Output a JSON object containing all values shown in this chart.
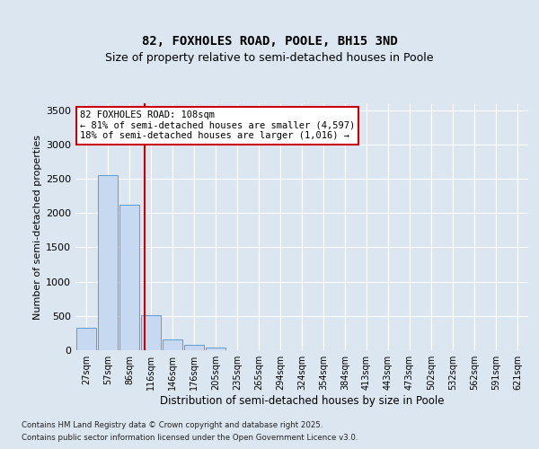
{
  "title": "82, FOXHOLES ROAD, POOLE, BH15 3ND",
  "subtitle": "Size of property relative to semi-detached houses in Poole",
  "xlabel": "Distribution of semi-detached houses by size in Poole",
  "ylabel": "Number of semi-detached properties",
  "bins": [
    "27sqm",
    "57sqm",
    "86sqm",
    "116sqm",
    "146sqm",
    "176sqm",
    "205sqm",
    "235sqm",
    "265sqm",
    "294sqm",
    "324sqm",
    "354sqm",
    "384sqm",
    "413sqm",
    "443sqm",
    "473sqm",
    "502sqm",
    "532sqm",
    "562sqm",
    "591sqm",
    "621sqm"
  ],
  "bin_edges": [
    0,
    1,
    2,
    3,
    4,
    5,
    6,
    7,
    8,
    9,
    10,
    11,
    12,
    13,
    14,
    15,
    16,
    17,
    18,
    19,
    20
  ],
  "values": [
    325,
    2550,
    2120,
    510,
    160,
    80,
    35,
    0,
    0,
    0,
    0,
    0,
    0,
    0,
    0,
    0,
    0,
    0,
    0,
    0,
    0
  ],
  "bar_color": "#c6d9f0",
  "bar_edge_color": "#5b9bd5",
  "property_line_x": 2.7,
  "annotation_line1": "82 FOXHOLES ROAD: 108sqm",
  "annotation_line2": "← 81% of semi-detached houses are smaller (4,597)",
  "annotation_line3": "18% of semi-detached houses are larger (1,016) →",
  "annotation_box_color": "#ffffff",
  "annotation_box_edge": "#cc0000",
  "vline_color": "#cc0000",
  "ylim": [
    0,
    3600
  ],
  "yticks": [
    0,
    500,
    1000,
    1500,
    2000,
    2500,
    3000,
    3500
  ],
  "bg_color": "#dce6f1",
  "plot_bg_color": "#dce6f1",
  "grid_color": "#ffffff",
  "footer_line1": "Contains HM Land Registry data © Crown copyright and database right 2025.",
  "footer_line2": "Contains public sector information licensed under the Open Government Licence v3.0.",
  "title_fontsize": 10,
  "subtitle_fontsize": 9,
  "annotation_fontsize": 7.5
}
